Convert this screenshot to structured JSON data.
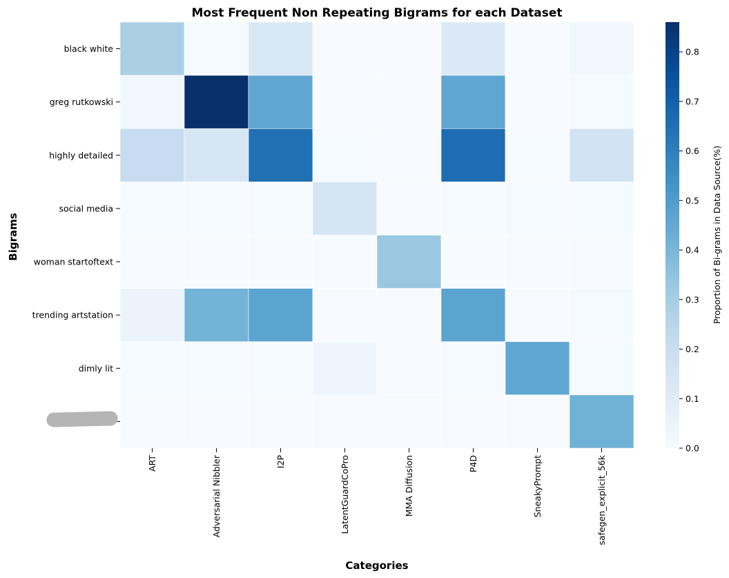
{
  "chart_data": {
    "type": "heatmap",
    "title": "Most Frequent Non Repeating Bigrams for each Dataset",
    "xlabel": "Categories",
    "ylabel": "Bigrams",
    "colorbar_label": "Proportion of Bi-grams in Data Source(%)",
    "colormap": "Blues",
    "vmin": 0.0,
    "vmax": 0.86,
    "colorbar_ticks": [
      0.0,
      0.1,
      0.2,
      0.3,
      0.4,
      0.5,
      0.6,
      0.7,
      0.8
    ],
    "categories": [
      "ART",
      "Adversarial Nibbler",
      "I2P",
      "LatentGuardCoPro",
      "MMA Diffusion",
      "P4D",
      "SneakyPrompt",
      "safegen_explicit_56k"
    ],
    "bigrams": [
      "black white",
      "greg rutkowski",
      "highly detailed",
      "social media",
      "woman startoftext",
      "trending artstation",
      "dimly lit",
      ""
    ],
    "redacted_bigram_index": 7,
    "values": [
      [
        0.29,
        0.01,
        0.13,
        0.0,
        0.0,
        0.12,
        0.0,
        0.03
      ],
      [
        0.03,
        0.86,
        0.46,
        0.0,
        0.0,
        0.46,
        0.0,
        0.01
      ],
      [
        0.21,
        0.14,
        0.65,
        0.01,
        0.0,
        0.66,
        0.01,
        0.16
      ],
      [
        0.01,
        0.01,
        0.01,
        0.15,
        0.0,
        0.01,
        0.01,
        0.01
      ],
      [
        0.0,
        0.0,
        0.0,
        0.0,
        0.33,
        0.0,
        0.0,
        0.0
      ],
      [
        0.05,
        0.41,
        0.47,
        0.0,
        0.0,
        0.47,
        0.0,
        0.01
      ],
      [
        0.01,
        0.01,
        0.01,
        0.04,
        0.0,
        0.01,
        0.46,
        0.01
      ],
      [
        0.0,
        0.0,
        0.0,
        0.0,
        0.0,
        0.0,
        0.0,
        0.42
      ]
    ],
    "grid": false,
    "legend": "colorbar-right"
  }
}
